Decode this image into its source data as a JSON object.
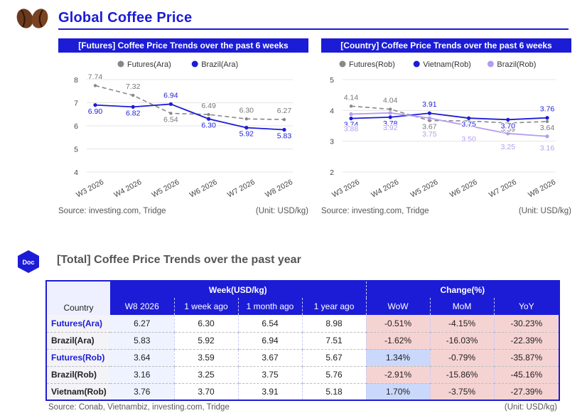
{
  "header": {
    "title": "Global Coffee Price"
  },
  "chart_data": [
    {
      "type": "line",
      "title": "[Futures] Coffee Price Trends over the past 6 weeks",
      "categories": [
        "W3 2026",
        "W4 2026",
        "W5 2026",
        "W6 2026",
        "W7 2026",
        "W8 2026"
      ],
      "ylim": [
        4,
        8
      ],
      "yticks": [
        4,
        5,
        6,
        7,
        8
      ],
      "legend_position": "top",
      "grid": true,
      "series": [
        {
          "name": "Futures(Ara)",
          "color": "#888888",
          "dashed": true,
          "values": [
            7.74,
            7.32,
            6.54,
            6.49,
            6.3,
            6.27
          ],
          "labels": [
            "7.74",
            "7.32",
            "6.54",
            "6.49",
            "6.30",
            "6.27"
          ]
        },
        {
          "name": "Brazil(Ara)",
          "color": "#1c1cd6",
          "dashed": false,
          "values": [
            6.9,
            6.82,
            6.94,
            6.3,
            5.92,
            5.83
          ],
          "labels": [
            "6.90",
            "6.82",
            "6.94",
            "6.30",
            "5.92",
            "5.83"
          ]
        }
      ],
      "source": "Source: investing.com, Tridge",
      "unit": "(Unit: USD/kg)"
    },
    {
      "type": "line",
      "title": "[Country] Coffee Price Trends over the past 6 weeks",
      "categories": [
        "W3 2026",
        "W4 2026",
        "W5 2026",
        "W6 2026",
        "W7 2026",
        "W8 2026"
      ],
      "ylim": [
        2,
        5
      ],
      "yticks": [
        2,
        3,
        4,
        5
      ],
      "legend_position": "top",
      "grid": true,
      "series": [
        {
          "name": "Futures(Rob)",
          "color": "#888888",
          "dashed": true,
          "values": [
            4.14,
            4.04,
            3.67,
            3.66,
            3.59,
            3.64
          ],
          "labels": [
            "4.14",
            "4.04",
            "3.67",
            "",
            "3.59",
            "3.64"
          ]
        },
        {
          "name": "Vietnam(Rob)",
          "color": "#1c1cd6",
          "dashed": false,
          "values": [
            3.74,
            3.78,
            3.91,
            3.75,
            3.7,
            3.76
          ],
          "labels": [
            "3.74",
            "3.78",
            "3.91",
            "3.75",
            "3.70",
            "3.76"
          ]
        },
        {
          "name": "Brazil(Rob)",
          "color": "#b49cf0",
          "dashed": false,
          "values": [
            3.88,
            3.92,
            3.75,
            3.5,
            3.25,
            3.16
          ],
          "labels": [
            "3.88",
            "3.92",
            "3.75",
            "3.50",
            "3.25",
            "3.16"
          ]
        }
      ],
      "source": "Source: investing.com, Tridge",
      "unit": "(Unit: USD/kg)"
    }
  ],
  "section": {
    "badge": "Doc",
    "title": "[Total] Coffee Price Trends over the past year"
  },
  "table": {
    "group_week": "Week(USD/kg)",
    "group_change": "Change(%)",
    "col_country": "Country",
    "columns": [
      "W8 2026",
      "1 week ago",
      "1 month ago",
      "1 year ago",
      "WoW",
      "MoM",
      "YoY"
    ],
    "rows": [
      {
        "country": "Futures(Ara)",
        "values": [
          "6.27",
          "6.30",
          "6.54",
          "8.98",
          "-0.51%",
          "-4.15%",
          "-30.23%"
        ]
      },
      {
        "country": "Brazil(Ara)",
        "values": [
          "5.83",
          "5.92",
          "6.94",
          "7.51",
          "-1.62%",
          "-16.03%",
          "-22.39%"
        ]
      },
      {
        "country": "Futures(Rob)",
        "values": [
          "3.64",
          "3.59",
          "3.67",
          "5.67",
          "1.34%",
          "-0.79%",
          "-35.87%"
        ]
      },
      {
        "country": "Brazil(Rob)",
        "values": [
          "3.16",
          "3.25",
          "3.75",
          "5.76",
          "-2.91%",
          "-15.86%",
          "-45.16%"
        ]
      },
      {
        "country": "Vietnam(Rob)",
        "values": [
          "3.76",
          "3.70",
          "3.91",
          "5.18",
          "1.70%",
          "-3.75%",
          "-27.39%"
        ]
      }
    ],
    "source": "Source: Conab, Vietnambiz, investing.com, Tridge",
    "unit": "(Unit: USD/kg)"
  }
}
